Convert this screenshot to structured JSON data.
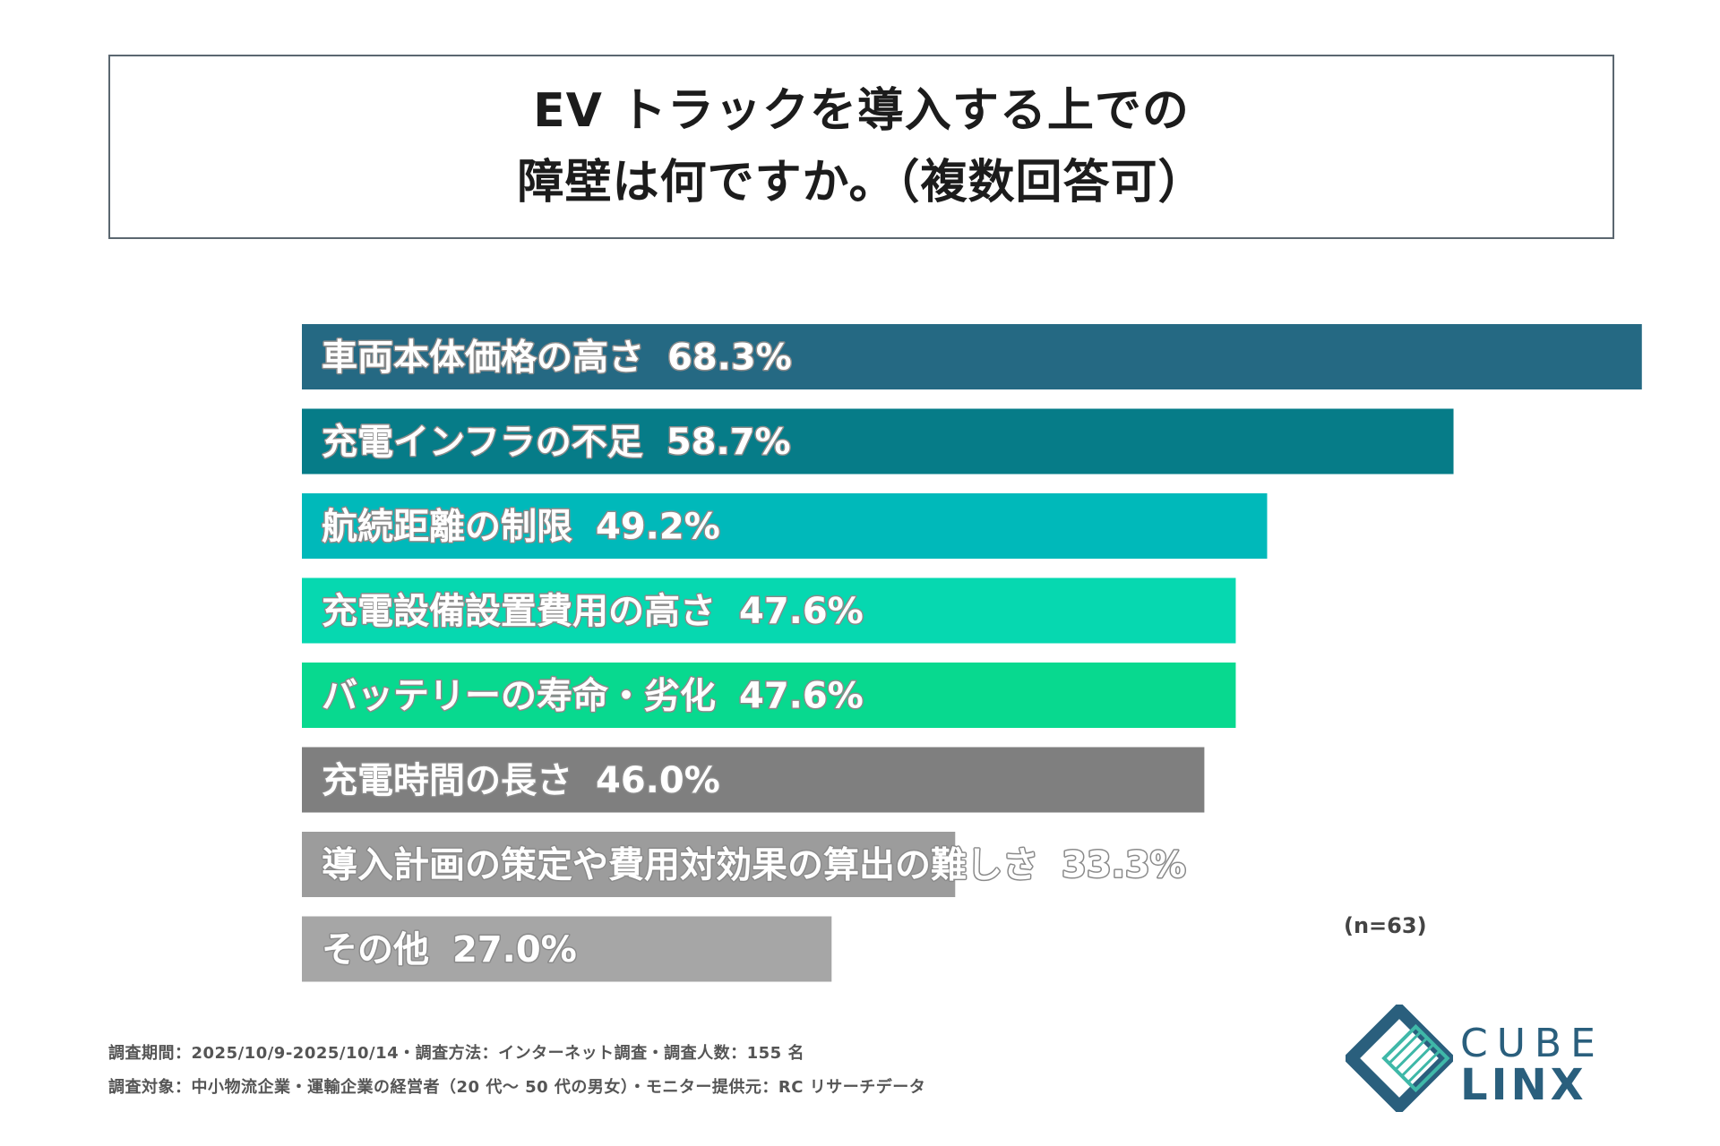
{
  "title": {
    "line1": "EV トラックを導入する上での",
    "line2": "障壁は何ですか。（複数回答可）"
  },
  "chart_data": {
    "type": "bar",
    "orientation": "horizontal",
    "title": "EV トラックを導入する上での障壁は何ですか。（複数回答可）",
    "categories": [
      "車両本体価格の高さ",
      "充電インフラの不足",
      "航続距離の制限",
      "充電設備設置費用の高さ",
      "バッテリーの寿命・劣化",
      "充電時間の長さ",
      "導入計画の策定や費用対効果の算出の難しさ",
      "その他"
    ],
    "values": [
      68.3,
      58.7,
      49.2,
      47.6,
      47.6,
      46.0,
      33.3,
      27.0
    ],
    "value_labels": [
      "68.3%",
      "58.7%",
      "49.2%",
      "47.6%",
      "47.6%",
      "46.0%",
      "33.3%",
      "27.0%"
    ],
    "colors": [
      "#256983",
      "#067c88",
      "#00b9ba",
      "#06d8b0",
      "#08d98f",
      "#7f7f7f",
      "#9c9c9c",
      "#a6a6a6"
    ],
    "xlim": [
      0,
      100
    ],
    "grid": false,
    "legend": "none",
    "n_note": "(n=63)"
  },
  "footer": {
    "line1": "調査期間：2025/10/9-2025/10/14・調査方法：インターネット調査・調査人数：155 名",
    "line2": "調査対象：中小物流企業・運輸企業の経営者（20 代～ 50 代の男女）・モニター提供元：RC リサーチデータ"
  },
  "logo": {
    "top": "CUBE",
    "bottom": "LINX",
    "color": "#2a5f7d",
    "accent": "#3fb8a8"
  }
}
